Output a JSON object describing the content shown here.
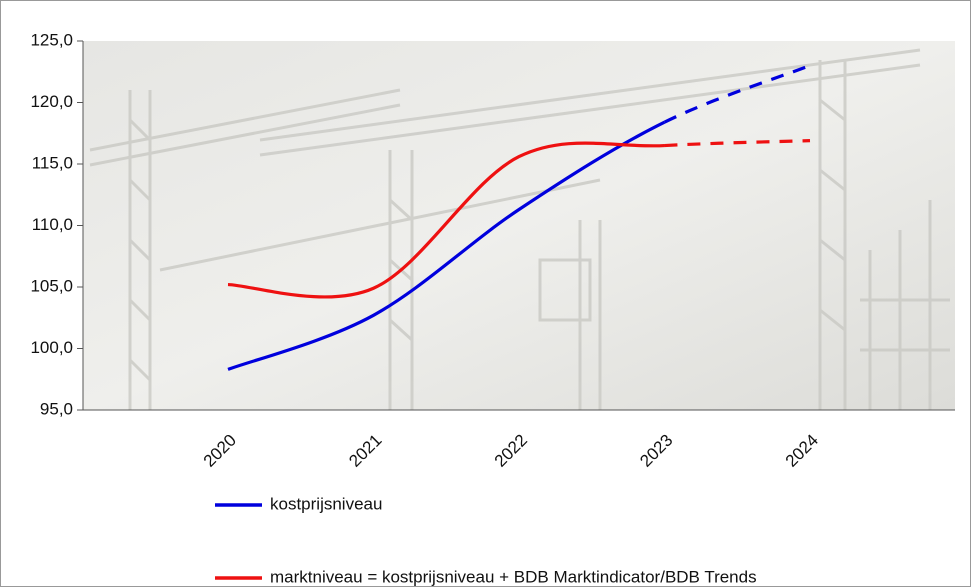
{
  "chart_data": {
    "type": "line",
    "categories": [
      "2020",
      "2021",
      "2022",
      "2023",
      "2024"
    ],
    "series": [
      {
        "name": "kostprijsniveau",
        "color": "#0000dd",
        "values": [
          98.3,
          102.7,
          111.3,
          118.4,
          123.0
        ]
      },
      {
        "name": "marktniveau = kostprijsniveau + BDB Marktindicator/BDB Trends",
        "color": "#ee1111",
        "values": [
          105.2,
          104.9,
          115.6,
          116.5,
          116.9
        ]
      }
    ],
    "dashed_from_index": 3,
    "ylim": [
      95,
      125
    ],
    "yticks": [
      {
        "value": 95,
        "label": "95,0"
      },
      {
        "value": 100,
        "label": "100,0"
      },
      {
        "value": 105,
        "label": "105,0"
      },
      {
        "value": 110,
        "label": "110,0"
      },
      {
        "value": 115,
        "label": "115,0"
      },
      {
        "value": 120,
        "label": "120,0"
      },
      {
        "value": 125,
        "label": "125,0"
      }
    ],
    "grid": false
  }
}
